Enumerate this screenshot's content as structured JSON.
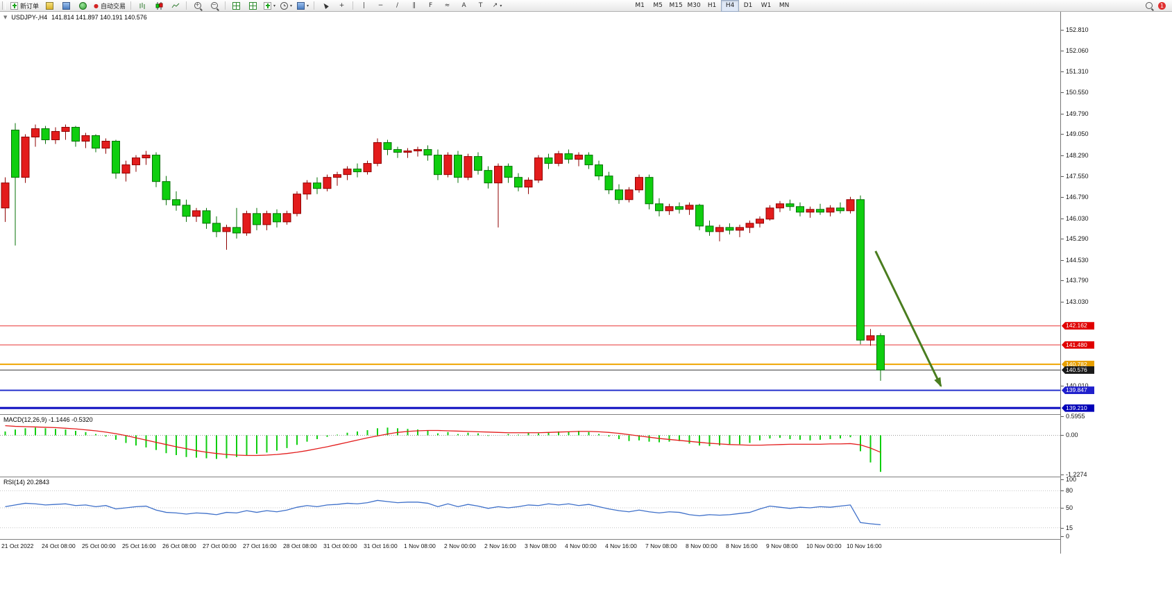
{
  "toolbar": {
    "new_order_label": "新订单",
    "auto_trading_label": "自动交易",
    "timeframes": [
      "M1",
      "M5",
      "M15",
      "M30",
      "H1",
      "H4",
      "D1",
      "W1",
      "MN"
    ],
    "active_timeframe": "H4",
    "notification_count": "1"
  },
  "icons": {
    "auto-trading-icon": "●",
    "zoom-in-glyph": "+",
    "zoom-out-glyph": "−",
    "crosshair-icon": "+",
    "vertical-line-icon": "|",
    "horizontal-line-icon": "−",
    "trendline-icon": "/",
    "channel-icon": "∥",
    "fibonacci-icon": "F",
    "shapes-icon": "≈",
    "text-icon": "A",
    "label-icon": "T",
    "arrows-icon": "↗",
    "dropdown-caret": "▾",
    "chart-dropdown-icon": "▼"
  },
  "chart": {
    "title_symbol": "USDJPY-,H4",
    "ohlc_readout": "141.814 141.897 140.191 140.576"
  },
  "chart_data": {
    "type": "candlestick",
    "symbol": "USDJPY-",
    "timeframe": "H4",
    "last_ohlc": {
      "open": 141.814,
      "high": 141.897,
      "low": 140.191,
      "close": 140.576
    },
    "bull_color": "#e31c1c",
    "bear_color": "#0fce0f",
    "price_range": [
      138.99,
      153.45
    ],
    "candles": [
      [
        146.4,
        147.5,
        145.9,
        147.3
      ],
      [
        149.2,
        149.45,
        145.05,
        147.5
      ],
      [
        147.5,
        149.05,
        147.3,
        148.95
      ],
      [
        148.95,
        149.4,
        148.6,
        149.25
      ],
      [
        149.25,
        149.35,
        148.7,
        148.85
      ],
      [
        148.85,
        149.3,
        148.7,
        149.15
      ],
      [
        149.15,
        149.4,
        148.85,
        149.3
      ],
      [
        149.3,
        149.35,
        148.6,
        148.8
      ],
      [
        148.8,
        149.1,
        148.55,
        149.0
      ],
      [
        149.0,
        149.05,
        148.4,
        148.55
      ],
      [
        148.55,
        148.9,
        148.35,
        148.8
      ],
      [
        148.8,
        148.85,
        147.45,
        147.65
      ],
      [
        147.65,
        148.1,
        147.35,
        147.95
      ],
      [
        147.95,
        148.3,
        147.7,
        148.2
      ],
      [
        148.2,
        148.45,
        147.95,
        148.3
      ],
      [
        148.3,
        148.4,
        147.15,
        147.35
      ],
      [
        147.35,
        147.55,
        146.5,
        146.7
      ],
      [
        146.7,
        147.0,
        146.3,
        146.5
      ],
      [
        146.5,
        146.7,
        145.9,
        146.1
      ],
      [
        146.1,
        146.4,
        145.9,
        146.3
      ],
      [
        146.3,
        146.4,
        145.65,
        145.85
      ],
      [
        145.85,
        146.1,
        145.35,
        145.55
      ],
      [
        145.55,
        145.8,
        144.9,
        145.7
      ],
      [
        145.7,
        146.4,
        145.3,
        145.5
      ],
      [
        145.5,
        146.3,
        145.4,
        146.2
      ],
      [
        146.2,
        146.4,
        145.6,
        145.8
      ],
      [
        145.8,
        146.3,
        145.6,
        146.2
      ],
      [
        146.2,
        146.35,
        145.7,
        145.9
      ],
      [
        145.9,
        146.3,
        145.8,
        146.2
      ],
      [
        146.2,
        147.0,
        146.1,
        146.9
      ],
      [
        146.9,
        147.4,
        146.7,
        147.3
      ],
      [
        147.3,
        147.5,
        146.9,
        147.1
      ],
      [
        147.1,
        147.6,
        147.0,
        147.5
      ],
      [
        147.5,
        147.7,
        147.2,
        147.6
      ],
      [
        147.6,
        147.9,
        147.4,
        147.8
      ],
      [
        147.8,
        148.0,
        147.5,
        147.7
      ],
      [
        147.7,
        148.1,
        147.6,
        148.0
      ],
      [
        148.0,
        148.9,
        147.9,
        148.75
      ],
      [
        148.75,
        148.85,
        148.3,
        148.5
      ],
      [
        148.5,
        148.6,
        148.2,
        148.4
      ],
      [
        148.4,
        148.55,
        148.2,
        148.45
      ],
      [
        148.45,
        148.6,
        148.25,
        148.5
      ],
      [
        148.5,
        148.65,
        148.1,
        148.3
      ],
      [
        148.3,
        148.5,
        147.4,
        147.6
      ],
      [
        147.6,
        148.4,
        147.5,
        148.3
      ],
      [
        148.3,
        148.45,
        147.3,
        147.5
      ],
      [
        147.5,
        148.35,
        147.4,
        148.25
      ],
      [
        148.25,
        148.4,
        147.6,
        147.75
      ],
      [
        147.75,
        147.9,
        147.1,
        147.3
      ],
      [
        147.3,
        148.0,
        145.7,
        147.9
      ],
      [
        147.9,
        148.0,
        147.3,
        147.5
      ],
      [
        147.5,
        147.65,
        147.0,
        147.15
      ],
      [
        147.15,
        147.5,
        146.9,
        147.4
      ],
      [
        147.4,
        148.3,
        147.3,
        148.2
      ],
      [
        148.2,
        148.35,
        147.8,
        148.0
      ],
      [
        148.0,
        148.45,
        147.9,
        148.35
      ],
      [
        148.35,
        148.5,
        148.0,
        148.15
      ],
      [
        148.15,
        148.4,
        147.9,
        148.3
      ],
      [
        148.3,
        148.4,
        147.8,
        147.95
      ],
      [
        147.95,
        148.1,
        147.4,
        147.55
      ],
      [
        147.55,
        147.7,
        146.9,
        147.05
      ],
      [
        147.05,
        147.25,
        146.55,
        146.7
      ],
      [
        146.7,
        147.15,
        146.6,
        147.05
      ],
      [
        147.05,
        147.6,
        146.95,
        147.5
      ],
      [
        147.5,
        147.6,
        146.35,
        146.55
      ],
      [
        146.55,
        146.75,
        146.1,
        146.3
      ],
      [
        146.3,
        146.55,
        146.15,
        146.45
      ],
      [
        146.45,
        146.6,
        146.2,
        146.35
      ],
      [
        146.35,
        146.6,
        146.15,
        146.5
      ],
      [
        146.5,
        146.55,
        145.6,
        145.75
      ],
      [
        145.75,
        145.95,
        145.4,
        145.55
      ],
      [
        145.55,
        145.8,
        145.2,
        145.7
      ],
      [
        145.7,
        145.85,
        145.45,
        145.6
      ],
      [
        145.6,
        145.8,
        145.35,
        145.7
      ],
      [
        145.7,
        145.95,
        145.5,
        145.85
      ],
      [
        145.85,
        146.1,
        145.7,
        146.0
      ],
      [
        146.0,
        146.5,
        145.95,
        146.4
      ],
      [
        146.4,
        146.65,
        146.25,
        146.55
      ],
      [
        146.55,
        146.7,
        146.3,
        146.45
      ],
      [
        146.45,
        146.6,
        146.1,
        146.25
      ],
      [
        146.25,
        146.45,
        146.05,
        146.35
      ],
      [
        146.35,
        146.55,
        146.15,
        146.25
      ],
      [
        146.25,
        146.5,
        146.1,
        146.4
      ],
      [
        146.4,
        146.6,
        146.2,
        146.3
      ],
      [
        146.3,
        146.8,
        146.2,
        146.7
      ],
      [
        146.7,
        146.85,
        141.5,
        141.65
      ],
      [
        141.65,
        142.05,
        141.45,
        141.81
      ],
      [
        141.814,
        141.897,
        140.191,
        140.576
      ]
    ],
    "time_labels": [
      "21 Oct 2022",
      "24 Oct 08:00",
      "25 Oct 00:00",
      "25 Oct 16:00",
      "26 Oct 08:00",
      "27 Oct 00:00",
      "27 Oct 16:00",
      "28 Oct 08:00",
      "31 Oct 00:00",
      "31 Oct 16:00",
      "1 Nov 08:00",
      "2 Nov 00:00",
      "2 Nov 16:00",
      "3 Nov 08:00",
      "4 Nov 00:00",
      "4 Nov 16:00",
      "7 Nov 08:00",
      "8 Nov 00:00",
      "8 Nov 16:00",
      "9 Nov 08:00",
      "10 Nov 00:00",
      "10 Nov 16:00"
    ],
    "label_every": 4,
    "price_axis_labels": [
      "152.810",
      "152.060",
      "151.310",
      "150.550",
      "149.790",
      "149.050",
      "148.290",
      "147.550",
      "146.790",
      "146.030",
      "145.290",
      "144.530",
      "143.790",
      "143.030",
      "140.010"
    ],
    "hlines": [
      {
        "price": 142.162,
        "color": "#e83333",
        "width": 1
      },
      {
        "price": 141.48,
        "color": "#e83333",
        "width": 1
      },
      {
        "price": 140.782,
        "color": "#efa400",
        "width": 2
      },
      {
        "price": 140.576,
        "color": "#3a3a3a",
        "width": 1
      },
      {
        "price": 139.847,
        "color": "#2633cc",
        "width": 2
      },
      {
        "price": 139.21,
        "color": "#0a0ac0",
        "width": 3
      }
    ],
    "price_badges": [
      {
        "text": "142.162",
        "price": 142.162,
        "color": "#e00000"
      },
      {
        "text": "141.480",
        "price": 141.48,
        "color": "#e00000"
      },
      {
        "text": "140.782",
        "price": 140.782,
        "color": "#e8a000"
      },
      {
        "text": "140.576",
        "price": 140.576,
        "color": "#1a1a1a"
      },
      {
        "text": "139.847",
        "price": 139.847,
        "color": "#2020cc"
      },
      {
        "text": "139.210",
        "price": 139.21,
        "color": "#0000b8"
      }
    ],
    "annotation_arrow": {
      "from_index": 86.5,
      "from_price": 144.85,
      "to_index": 93,
      "to_price": 140.0,
      "color": "#4a7d1f"
    },
    "macd": {
      "label": "MACD(12,26,9)",
      "values_text": "-1.1446 -0.5320",
      "scale_max": 0.5955,
      "scale_mid": 0.0,
      "scale_min": -1.2274,
      "scale_labels": [
        "0.5955",
        "0.00",
        "-1.2274"
      ],
      "hist_color": "#0fce0f",
      "signal_color": "#e31c1c",
      "hist": [
        0.12,
        0.18,
        0.22,
        0.24,
        0.22,
        0.2,
        0.18,
        0.14,
        0.1,
        0.04,
        -0.04,
        -0.14,
        -0.24,
        -0.32,
        -0.38,
        -0.46,
        -0.56,
        -0.62,
        -0.68,
        -0.7,
        -0.72,
        -0.74,
        -0.72,
        -0.68,
        -0.62,
        -0.58,
        -0.54,
        -0.48,
        -0.4,
        -0.3,
        -0.2,
        -0.12,
        -0.05,
        0.02,
        0.08,
        0.12,
        0.16,
        0.22,
        0.24,
        0.22,
        0.2,
        0.18,
        0.14,
        0.06,
        0.1,
        0.04,
        0.08,
        0.06,
        -0.02,
        0.0,
        0.04,
        0.02,
        0.08,
        0.06,
        0.08,
        0.12,
        0.12,
        0.14,
        0.1,
        0.04,
        -0.04,
        -0.12,
        -0.18,
        -0.16,
        -0.2,
        -0.22,
        -0.2,
        -0.18,
        -0.26,
        -0.32,
        -0.34,
        -0.32,
        -0.3,
        -0.28,
        -0.24,
        -0.16,
        -0.1,
        -0.08,
        -0.12,
        -0.14,
        -0.16,
        -0.14,
        -0.12,
        -0.1,
        -0.06,
        -0.5,
        -0.85,
        -1.1446
      ],
      "signal": [
        0.3,
        0.28,
        0.27,
        0.26,
        0.25,
        0.24,
        0.22,
        0.2,
        0.17,
        0.14,
        0.1,
        0.05,
        -0.01,
        -0.08,
        -0.15,
        -0.22,
        -0.29,
        -0.36,
        -0.42,
        -0.48,
        -0.53,
        -0.57,
        -0.6,
        -0.62,
        -0.63,
        -0.63,
        -0.62,
        -0.6,
        -0.57,
        -0.53,
        -0.48,
        -0.42,
        -0.36,
        -0.29,
        -0.22,
        -0.15,
        -0.08,
        -0.02,
        0.04,
        0.09,
        0.12,
        0.14,
        0.15,
        0.15,
        0.14,
        0.13,
        0.12,
        0.11,
        0.1,
        0.09,
        0.08,
        0.08,
        0.08,
        0.08,
        0.09,
        0.1,
        0.11,
        0.12,
        0.12,
        0.11,
        0.09,
        0.06,
        0.02,
        -0.02,
        -0.06,
        -0.1,
        -0.13,
        -0.16,
        -0.19,
        -0.22,
        -0.25,
        -0.27,
        -0.29,
        -0.3,
        -0.31,
        -0.31,
        -0.3,
        -0.29,
        -0.28,
        -0.28,
        -0.28,
        -0.28,
        -0.27,
        -0.27,
        -0.26,
        -0.3,
        -0.4,
        -0.532
      ]
    },
    "rsi": {
      "label": "RSI(14)",
      "value_text": "20.2843",
      "levels": [
        100,
        80,
        50,
        15,
        0
      ],
      "line_color": "#3d6fc9",
      "values": [
        52,
        55,
        58,
        57,
        55,
        56,
        57,
        54,
        55,
        52,
        54,
        48,
        50,
        52,
        53,
        46,
        42,
        41,
        39,
        41,
        40,
        38,
        42,
        41,
        45,
        42,
        45,
        43,
        46,
        51,
        54,
        52,
        55,
        56,
        58,
        57,
        59,
        63,
        61,
        59,
        60,
        60,
        58,
        52,
        57,
        52,
        56,
        53,
        49,
        52,
        50,
        52,
        55,
        54,
        57,
        55,
        57,
        54,
        56,
        52,
        48,
        45,
        43,
        46,
        43,
        41,
        43,
        42,
        38,
        36,
        38,
        37,
        38,
        40,
        42,
        48,
        53,
        51,
        49,
        51,
        50,
        52,
        51,
        53,
        55,
        24,
        22,
        20.2843
      ]
    }
  }
}
